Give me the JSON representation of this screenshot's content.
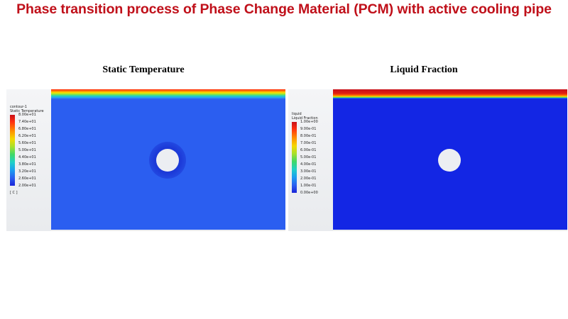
{
  "title": "Phase transition process of Phase Change Material (PCM) with active cooling pipe",
  "panels": {
    "temperature": {
      "title": "Static Temperature",
      "legend": {
        "name": "contour-1",
        "variable": "Static Temperature",
        "unit": "[ C ]",
        "ticks": [
          "8.00e+01",
          "7.40e+01",
          "6.80e+01",
          "6.20e+01",
          "5.60e+01",
          "5.00e+01",
          "4.40e+01",
          "3.80e+01",
          "3.20e+01",
          "2.60e+01",
          "2.00e+01"
        ],
        "range": [
          20,
          80
        ]
      }
    },
    "liquid_fraction": {
      "title": "Liquid Fraction",
      "legend": {
        "name": "liquid",
        "variable": "Liquid Fraction",
        "ticks": [
          "1.00e+00",
          "9.00e-01",
          "8.00e-01",
          "7.00e-01",
          "6.00e-01",
          "5.00e-01",
          "4.00e-01",
          "3.00e-01",
          "2.00e-01",
          "1.00e-01",
          "0.00e+00"
        ],
        "range": [
          0,
          1
        ]
      }
    }
  },
  "colors": {
    "title": "#c0101a",
    "domain_temp": "#2b5ef0",
    "domain_lf": "#1326e4",
    "pipe": "#eceef2"
  }
}
